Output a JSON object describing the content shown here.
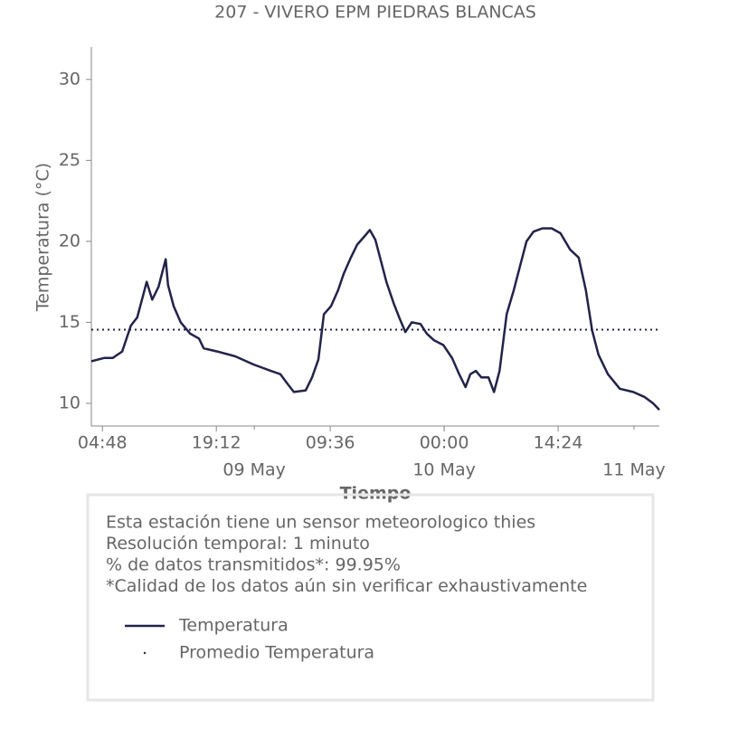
{
  "chart_data": {
    "type": "line",
    "title": "207 - VIVERO EPM PIEDRAS BLANCAS",
    "xlabel": "Tiempo",
    "ylabel": "Temperatura (°C)",
    "x": [
      3.4,
      5,
      6.1,
      7.3,
      8.4,
      9.2,
      9.9,
      10.4,
      11.1,
      11.9,
      12.8,
      13.1,
      13.8,
      14.7,
      15.9,
      17,
      17.6,
      19.3,
      21.6,
      23.9,
      26.1,
      27.3,
      28.2,
      29,
      30.5,
      31.3,
      32.1,
      32.8,
      33.7,
      34.6,
      35.3,
      36.2,
      37,
      37.9,
      38.6,
      39.3,
      39.9,
      40.7,
      41.6,
      42.4,
      43.1,
      43.9,
      45,
      45.8,
      46.7,
      47.9,
      49,
      49.9,
      50.7,
      51.3,
      52,
      52.7,
      53.6,
      54.3,
      55,
      55.9,
      56.8,
      57.6,
      58.4,
      59.3,
      60.4,
      61.6,
      62.7,
      63.9,
      65,
      65.9,
      66.7,
      67.5,
      68.7,
      70.2,
      71.9,
      73.3,
      74.4,
      75.2
    ],
    "series": [
      {
        "name": "Temperatura",
        "color": "#22234a",
        "values": [
          12.6,
          12.8,
          12.8,
          13.2,
          14.8,
          15.3,
          16.6,
          17.5,
          16.4,
          17.2,
          18.9,
          17.3,
          16.0,
          15.0,
          14.3,
          14.0,
          13.4,
          13.2,
          12.9,
          12.4,
          12.0,
          11.8,
          11.2,
          10.7,
          10.8,
          11.6,
          12.7,
          15.5,
          16.0,
          17.0,
          18.0,
          19.0,
          19.8,
          20.3,
          20.7,
          20.1,
          19.0,
          17.5,
          16.2,
          15.2,
          14.4,
          15.0,
          14.9,
          14.3,
          13.9,
          13.6,
          12.8,
          11.8,
          11.0,
          11.8,
          12.0,
          11.6,
          11.6,
          10.7,
          12.0,
          15.5,
          17.0,
          18.5,
          20.0,
          20.6,
          20.8,
          20.8,
          20.5,
          19.5,
          19.0,
          17.0,
          14.5,
          13.0,
          11.8,
          10.9,
          10.7,
          10.4,
          10.0,
          9.6
        ]
      }
    ],
    "mean": {
      "name": "Promedio Temperatura",
      "value": 14.55,
      "color": "#22234a"
    },
    "xlim": [
      3.4,
      75.2
    ],
    "xticks": [
      {
        "value": 4.8,
        "label": "04:48"
      },
      {
        "value": 19.2,
        "label": "19:12"
      },
      {
        "value": 33.6,
        "label": "09:36"
      },
      {
        "value": 48,
        "label": "00:00"
      },
      {
        "value": 62.4,
        "label": "14:24"
      }
    ],
    "xticks2": [
      {
        "value": 24,
        "label": "09 May"
      },
      {
        "value": 48,
        "label": "10 May"
      },
      {
        "value": 72,
        "label": "11 May"
      }
    ],
    "ylim": [
      8.6,
      32
    ],
    "yticks": [
      10,
      15,
      20,
      25,
      30
    ],
    "notes": [
      "Esta estación tiene un sensor meteorologico thies",
      "Resolución temporal: 1 minuto",
      "% de datos transmitidos*: 99.95%",
      "*Calidad de los datos aún sin verificar exhaustivamente"
    ]
  }
}
